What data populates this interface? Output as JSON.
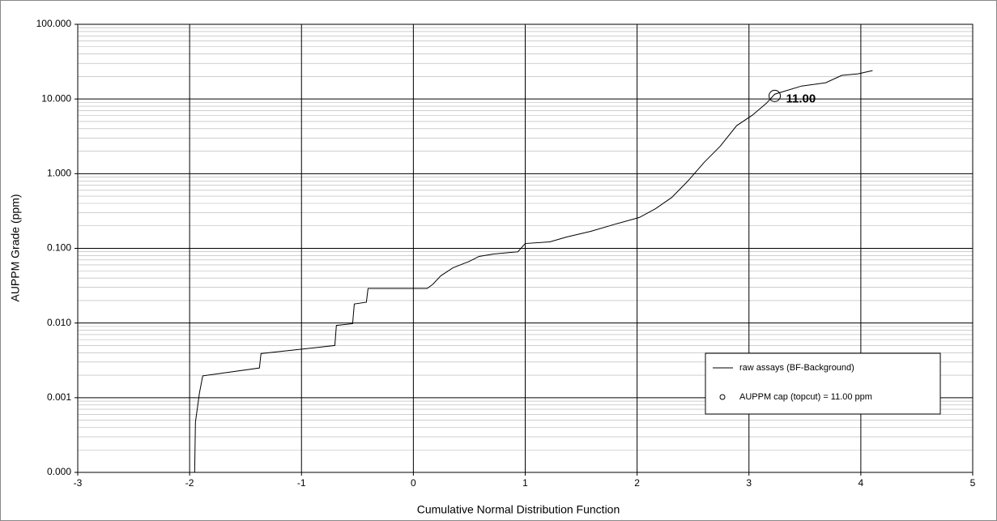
{
  "chart_data": {
    "type": "line",
    "x_label": "Cumulative Normal Distribution Function",
    "y_label": "AUPPM Grade (ppm)",
    "xlim": [
      -3,
      5
    ],
    "xticks": [
      -3,
      -2,
      -1,
      0,
      1,
      2,
      3,
      4,
      5
    ],
    "ylim": [
      0.0001,
      100
    ],
    "log_y": true,
    "grid": true,
    "minor_grid": true,
    "yticks": [
      {
        "value": 0.0001,
        "label": "0.000"
      },
      {
        "value": 0.001,
        "label": "0.001"
      },
      {
        "value": 0.01,
        "label": "0.010"
      },
      {
        "value": 0.1,
        "label": "0.100"
      },
      {
        "value": 1,
        "label": "1.000"
      },
      {
        "value": 10,
        "label": "10.000"
      },
      {
        "value": 100,
        "label": "100.000"
      }
    ],
    "legend": "lower right",
    "series": [
      {
        "name": "raw assays (BF-Background)",
        "color": "#000000",
        "style": "line",
        "x": [
          -1.955,
          -1.948,
          -1.926,
          -1.912,
          -1.883,
          -1.376,
          -1.362,
          -0.702,
          -0.688,
          -0.543,
          -0.528,
          -0.42,
          -0.405,
          0.123,
          0.174,
          0.246,
          0.355,
          0.5,
          0.587,
          0.717,
          0.934,
          1.0,
          1.22,
          1.37,
          1.586,
          1.8,
          2.02,
          2.165,
          2.31,
          2.455,
          2.6,
          2.744,
          2.89,
          3.03,
          3.157,
          3.23,
          3.47,
          3.686,
          3.83,
          3.975,
          4.105
        ],
        "values": [
          0.0001,
          0.00047,
          0.00082,
          0.00116,
          0.00196,
          0.0025,
          0.0039,
          0.005,
          0.0093,
          0.0098,
          0.018,
          0.019,
          0.029,
          0.029,
          0.033,
          0.043,
          0.055,
          0.067,
          0.078,
          0.084,
          0.09,
          0.116,
          0.122,
          0.142,
          0.169,
          0.21,
          0.259,
          0.34,
          0.48,
          0.8,
          1.42,
          2.34,
          4.4,
          6.06,
          8.8,
          11.6,
          14.9,
          16.5,
          20.7,
          21.7,
          24
        ]
      },
      {
        "name": "AUPPM cap (topcut) = 11.00 ppm",
        "color": "#000000",
        "style": "marker",
        "x": [
          3.23
        ],
        "values": [
          11
        ],
        "value_labels": [
          "11.00"
        ]
      }
    ]
  }
}
